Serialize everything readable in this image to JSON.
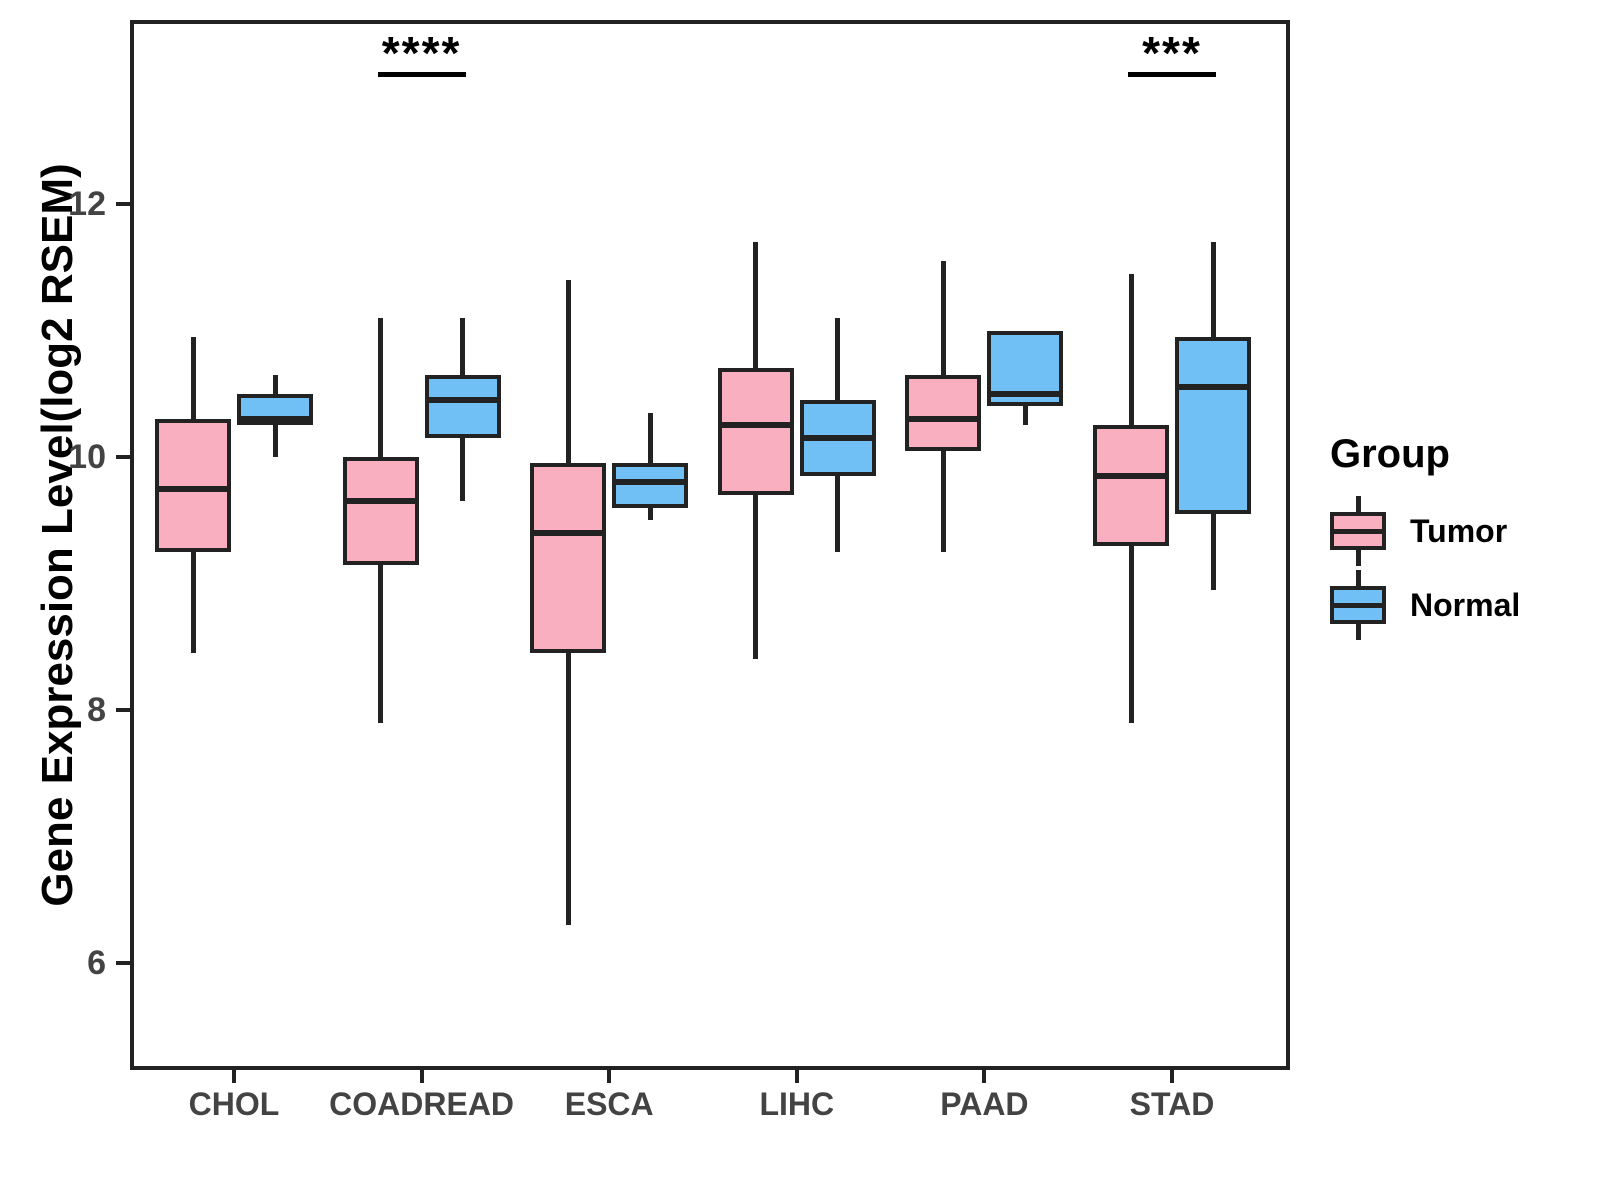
{
  "chart_data": {
    "type": "boxplot",
    "title": "",
    "ylabel": "Gene Expression Level(log2 RSEM)",
    "xlabel": "",
    "categories": [
      "CHOL",
      "COADREAD",
      "ESCA",
      "LIHC",
      "PAAD",
      "STAD"
    ],
    "y_ticks": [
      12,
      10,
      8,
      6
    ],
    "ylim": [
      5.15,
      13.45
    ],
    "grid": false,
    "legend_position": "right",
    "legend": {
      "title": "Group",
      "items": [
        "Tumor",
        "Normal"
      ]
    },
    "line_color": "#222222",
    "series": [
      {
        "name": "Tumor",
        "color": "#FAAFC1",
        "boxes": [
          {
            "category": "CHOL",
            "low": 8.45,
            "q1": 9.25,
            "median": 9.75,
            "q3": 10.3,
            "high": 10.95
          },
          {
            "category": "COADREAD",
            "low": 7.9,
            "q1": 9.15,
            "median": 9.65,
            "q3": 10.0,
            "high": 11.1
          },
          {
            "category": "ESCA",
            "low": 6.3,
            "q1": 8.45,
            "median": 9.4,
            "q3": 9.95,
            "high": 11.4
          },
          {
            "category": "LIHC",
            "low": 8.4,
            "q1": 9.7,
            "median": 10.25,
            "q3": 10.7,
            "high": 11.7
          },
          {
            "category": "PAAD",
            "low": 9.25,
            "q1": 10.05,
            "median": 10.3,
            "q3": 10.65,
            "high": 11.55
          },
          {
            "category": "STAD",
            "low": 7.9,
            "q1": 9.3,
            "median": 9.85,
            "q3": 10.25,
            "high": 11.45
          }
        ]
      },
      {
        "name": "Normal",
        "color": "#70BFF5",
        "boxes": [
          {
            "category": "CHOL",
            "low": 10.0,
            "q1": 10.25,
            "median": 10.3,
            "q3": 10.5,
            "high": 10.65
          },
          {
            "category": "COADREAD",
            "low": 9.65,
            "q1": 10.15,
            "median": 10.45,
            "q3": 10.65,
            "high": 11.1
          },
          {
            "category": "ESCA",
            "low": 9.5,
            "q1": 9.6,
            "median": 9.8,
            "q3": 9.95,
            "high": 10.35
          },
          {
            "category": "LIHC",
            "low": 9.25,
            "q1": 9.85,
            "median": 10.15,
            "q3": 10.45,
            "high": 11.1
          },
          {
            "category": "PAAD",
            "low": 10.25,
            "q1": 10.4,
            "median": 10.5,
            "q3": 11.0,
            "high": 11.0
          },
          {
            "category": "STAD",
            "low": 8.95,
            "q1": 9.55,
            "median": 10.55,
            "q3": 10.95,
            "high": 11.7
          }
        ]
      }
    ],
    "significance": [
      {
        "category": "COADREAD",
        "label": "****"
      },
      {
        "category": "STAD",
        "label": "***"
      }
    ]
  }
}
